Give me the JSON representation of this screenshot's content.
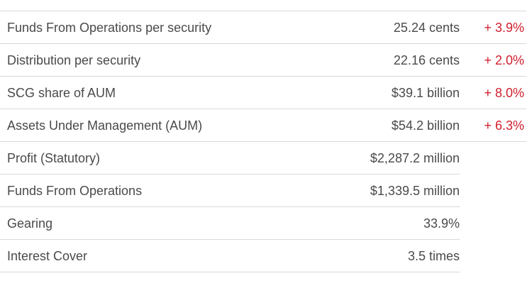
{
  "metrics": [
    {
      "label": "Funds From Operations per security",
      "value": "25.24 cents",
      "change": "+ 3.9%"
    },
    {
      "label": "Distribution per security",
      "value": "22.16 cents",
      "change": "+ 2.0%"
    },
    {
      "label": "SCG share of AUM",
      "value": "$39.1 billion",
      "change": "+ 8.0%"
    },
    {
      "label": "Assets Under Management (AUM)",
      "value": "$54.2 billion",
      "change": "+ 6.3%"
    },
    {
      "label": "Profit (Statutory)",
      "value": "$2,287.2 million",
      "change": ""
    },
    {
      "label": "Funds From Operations",
      "value": "$1,339.5 million",
      "change": ""
    },
    {
      "label": "Gearing",
      "value": "33.9%",
      "change": ""
    },
    {
      "label": "Interest Cover",
      "value": "3.5 times",
      "change": ""
    }
  ],
  "colors": {
    "text": "#4a4a4a",
    "positive_change": "#d0202e",
    "rule": "#d9d9d9"
  }
}
